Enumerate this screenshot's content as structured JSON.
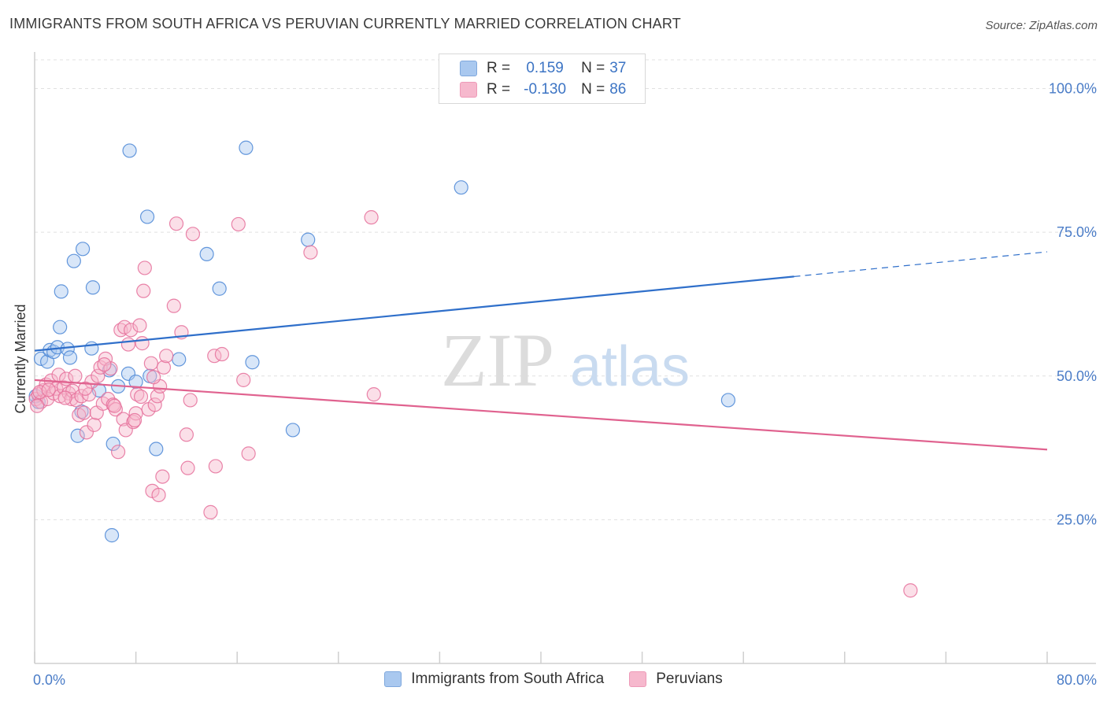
{
  "title": "IMMIGRANTS FROM SOUTH AFRICA VS PERUVIAN CURRENTLY MARRIED CORRELATION CHART",
  "source": "Source: ZipAtlas.com",
  "watermark": {
    "zip": "ZIP",
    "atlas": "atlas"
  },
  "legend_top": {
    "rows": [
      {
        "r_label": "R =",
        "r_value": "0.159",
        "n_label": "N =",
        "n_value": "37",
        "color": "#a9c8ef"
      },
      {
        "r_label": "R =",
        "r_value": "-0.130",
        "n_label": "N =",
        "n_value": "86",
        "color": "#f6b8cd"
      }
    ]
  },
  "legend_bottom": [
    {
      "label": "Immigrants from South Africa",
      "color": "#a9c8ef"
    },
    {
      "label": "Peruvians",
      "color": "#f6b8cd"
    }
  ],
  "chart_data": {
    "type": "scatter",
    "xlabel": "",
    "ylabel": "Currently Married",
    "xlim": [
      0,
      80
    ],
    "ylim": [
      0,
      105
    ],
    "x_tick_labels": [
      {
        "value": 0,
        "label": "0.0%"
      },
      {
        "value": 80,
        "label": "80.0%"
      }
    ],
    "y_tick_labels": [
      {
        "value": 100,
        "label": "100.0%"
      },
      {
        "value": 75,
        "label": "75.0%"
      },
      {
        "value": 50,
        "label": "50.0%"
      },
      {
        "value": 25,
        "label": "25.0%"
      }
    ],
    "series": [
      {
        "name": "Immigrants from South Africa",
        "color": "#4a86d6",
        "fill": "#a9c8ef",
        "trend": {
          "x0": 0,
          "y0": 54.4,
          "x1": 60,
          "y1": 67.3,
          "dash_to_x": 80,
          "dash_to_y": 71.6,
          "color": "#2f6fca"
        },
        "points": [
          [
            0.3,
            45.5
          ],
          [
            0.5,
            53
          ],
          [
            1.0,
            52.5
          ],
          [
            1.2,
            54.5
          ],
          [
            1.5,
            54.2
          ],
          [
            1.8,
            55
          ],
          [
            2.0,
            58.5
          ],
          [
            2.1,
            64.7
          ],
          [
            2.6,
            54.7
          ],
          [
            2.8,
            53.2
          ],
          [
            3.1,
            70
          ],
          [
            3.4,
            39.6
          ],
          [
            3.8,
            72.1
          ],
          [
            3.7,
            43.8
          ],
          [
            4.5,
            54.8
          ],
          [
            4.6,
            65.4
          ],
          [
            5.1,
            47.5
          ],
          [
            5.9,
            51
          ],
          [
            6.2,
            38.2
          ],
          [
            6.6,
            48.2
          ],
          [
            6.1,
            22.3
          ],
          [
            7.4,
            50.4
          ],
          [
            7.5,
            89.2
          ],
          [
            8.0,
            49
          ],
          [
            8.9,
            77.7
          ],
          [
            9.1,
            50
          ],
          [
            9.6,
            37.3
          ],
          [
            11.4,
            52.9
          ],
          [
            13.6,
            71.2
          ],
          [
            14.6,
            65.2
          ],
          [
            16.7,
            89.7
          ],
          [
            17.2,
            52.4
          ],
          [
            21.6,
            73.7
          ],
          [
            20.4,
            40.6
          ],
          [
            33.7,
            82.8
          ],
          [
            54.8,
            45.8
          ],
          [
            0.1,
            46.5
          ]
        ]
      },
      {
        "name": "Peruvians",
        "color": "#e56f9a",
        "fill": "#f6b8cd",
        "trend": {
          "x0": 0,
          "y0": 49.3,
          "x1": 80,
          "y1": 37.2,
          "color": "#e0628f"
        },
        "points": [
          [
            0.1,
            46
          ],
          [
            0.3,
            46.8
          ],
          [
            0.5,
            45.5
          ],
          [
            0.7,
            47.5
          ],
          [
            0.9,
            48.5
          ],
          [
            1.0,
            46
          ],
          [
            1.3,
            49.2
          ],
          [
            1.5,
            47
          ],
          [
            1.7,
            47.8
          ],
          [
            1.9,
            50.2
          ],
          [
            2.0,
            46.5
          ],
          [
            2.3,
            48
          ],
          [
            2.5,
            49.5
          ],
          [
            2.7,
            47
          ],
          [
            2.9,
            46
          ],
          [
            3.0,
            47.4
          ],
          [
            3.2,
            50
          ],
          [
            3.3,
            45.8
          ],
          [
            3.5,
            43.2
          ],
          [
            3.7,
            46.5
          ],
          [
            3.9,
            43.6
          ],
          [
            4.1,
            40.2
          ],
          [
            4.3,
            46.8
          ],
          [
            4.5,
            49
          ],
          [
            4.7,
            41.5
          ],
          [
            4.9,
            43.6
          ],
          [
            5.0,
            50
          ],
          [
            5.2,
            51.5
          ],
          [
            5.4,
            45.2
          ],
          [
            5.6,
            53
          ],
          [
            5.8,
            46
          ],
          [
            6.0,
            51.3
          ],
          [
            6.2,
            45
          ],
          [
            6.4,
            44.2
          ],
          [
            6.6,
            36.8
          ],
          [
            6.8,
            58
          ],
          [
            7.0,
            42.5
          ],
          [
            7.1,
            58.5
          ],
          [
            7.2,
            40.6
          ],
          [
            7.4,
            55.5
          ],
          [
            7.6,
            58
          ],
          [
            7.8,
            42
          ],
          [
            8.0,
            43.5
          ],
          [
            8.1,
            46.8
          ],
          [
            8.3,
            58.8
          ],
          [
            8.4,
            46.4
          ],
          [
            8.5,
            55.7
          ],
          [
            8.6,
            64.8
          ],
          [
            8.7,
            68.8
          ],
          [
            9.0,
            44.2
          ],
          [
            9.2,
            52.2
          ],
          [
            9.3,
            30
          ],
          [
            9.5,
            45
          ],
          [
            9.7,
            46.5
          ],
          [
            9.8,
            29.3
          ],
          [
            9.9,
            48.2
          ],
          [
            10.1,
            32.5
          ],
          [
            10.2,
            51.5
          ],
          [
            10.4,
            53.5
          ],
          [
            11.0,
            62.2
          ],
          [
            11.2,
            76.5
          ],
          [
            11.6,
            57.6
          ],
          [
            12.0,
            39.8
          ],
          [
            12.1,
            34
          ],
          [
            12.3,
            45.8
          ],
          [
            12.5,
            74.7
          ],
          [
            13.9,
            26.3
          ],
          [
            14.2,
            53.5
          ],
          [
            14.3,
            34.3
          ],
          [
            14.8,
            53.8
          ],
          [
            16.1,
            76.4
          ],
          [
            16.5,
            49.3
          ],
          [
            16.9,
            36.5
          ],
          [
            21.8,
            71.5
          ],
          [
            26.6,
            77.6
          ],
          [
            26.8,
            46.8
          ],
          [
            69.2,
            12.7
          ],
          [
            0.2,
            44.8
          ],
          [
            0.4,
            47.2
          ],
          [
            1.1,
            47.6
          ],
          [
            2.4,
            46.2
          ],
          [
            4.0,
            47.8
          ],
          [
            5.5,
            52
          ],
          [
            6.3,
            44.8
          ],
          [
            7.9,
            42.3
          ],
          [
            9.4,
            49.8
          ]
        ]
      }
    ]
  }
}
